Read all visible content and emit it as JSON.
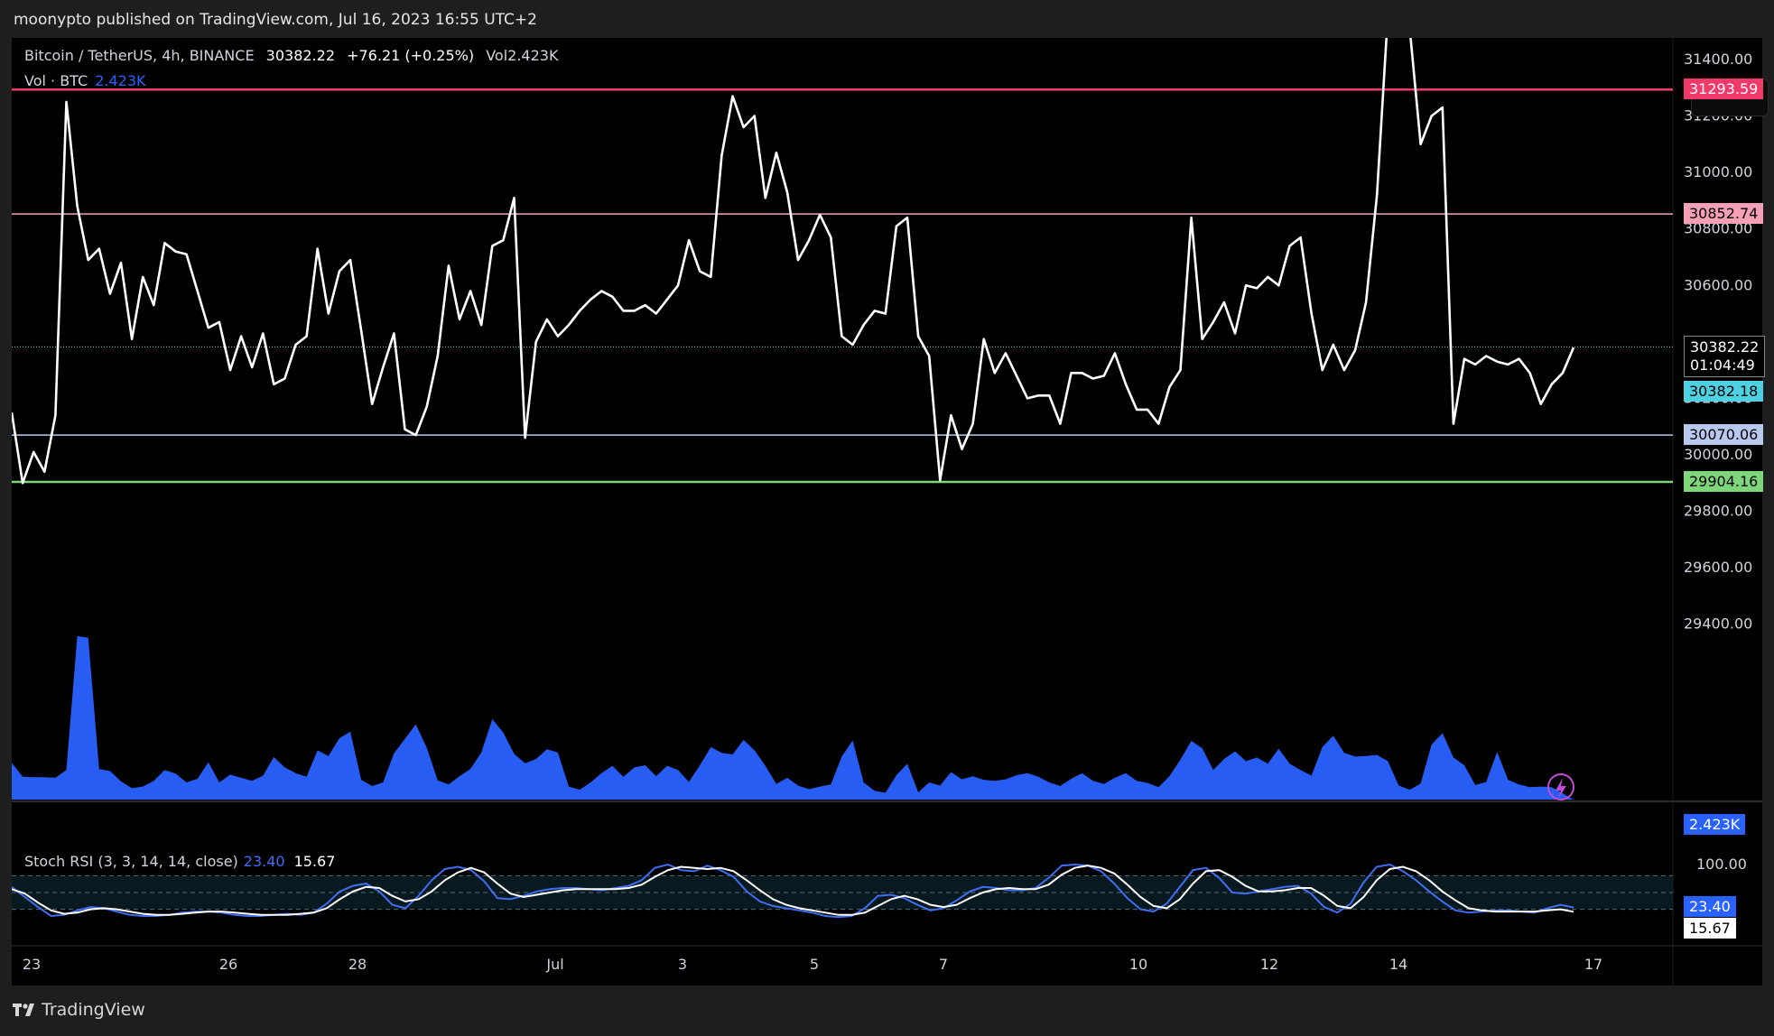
{
  "header": {
    "publisher_line": "moonypto published on TradingView.com, Jul 16, 2023 16:55 UTC+2"
  },
  "legend": {
    "symbol": "Bitcoin / TetherUS, 4h, BINANCE",
    "price": "30382.22",
    "change": "+76.21 (+0.25%)",
    "volume": "Vol2.423K",
    "vol_label": "Vol · BTC",
    "vol_value": "2.423K"
  },
  "rsi_legend": {
    "label": "Stoch RSI (3, 3, 14, 14, close)",
    "k": "23.40",
    "d": "15.67"
  },
  "footer": {
    "brand": "TradingView"
  },
  "colors": {
    "line": "#ffffff",
    "volume": "#2962ff",
    "level_red": "#f23a6a",
    "level_pink": "#f5a0b5",
    "level_green": "#7ed67a",
    "level_blue": "#b8c8ee",
    "current": "#7fd7e6"
  },
  "chart_data": [
    {
      "type": "line",
      "title": "Bitcoin / TetherUS, 4h, BINANCE",
      "x_ticks": [
        "23",
        "26",
        "28",
        "Jul",
        "3",
        "5",
        "7",
        "10",
        "12",
        "14",
        "17"
      ],
      "y_ticks": [
        "31400.00",
        "31200.00",
        "31000.00",
        "30800.00",
        "30600.00",
        "30200.00",
        "30000.00",
        "29800.00",
        "29600.00",
        "29400.00"
      ],
      "ylim": [
        29264,
        31503
      ],
      "horizontal_levels": [
        {
          "value": 31293.59,
          "label": "31293.59",
          "color": "#f23a6a"
        },
        {
          "value": 30852.74,
          "label": "30852.74",
          "color": "#f5a0b5"
        },
        {
          "value": 30070.06,
          "label": "30070.06",
          "color": "#b8c8ee"
        },
        {
          "value": 29904.16,
          "label": "29904.16",
          "color": "#7ed67a"
        }
      ],
      "current_price": {
        "value": 30382.22,
        "label": "30382.22",
        "countdown": "01:04:49",
        "bid_label": "30382.18"
      },
      "values": [
        30150,
        29900,
        30010,
        29940,
        30140,
        31250,
        30880,
        30690,
        30730,
        30570,
        30680,
        30410,
        30630,
        30530,
        30750,
        30720,
        30710,
        30580,
        30450,
        30470,
        30300,
        30420,
        30310,
        30430,
        30250,
        30270,
        30390,
        30420,
        30730,
        30500,
        30650,
        30690,
        30440,
        30180,
        30310,
        30430,
        30090,
        30070,
        30170,
        30350,
        30670,
        30480,
        30580,
        30460,
        30740,
        30760,
        30910,
        30060,
        30400,
        30480,
        30420,
        30460,
        30510,
        30550,
        30580,
        30560,
        30510,
        30510,
        30530,
        30500,
        30550,
        30600,
        30760,
        30650,
        30630,
        31060,
        31270,
        31160,
        31200,
        30910,
        31070,
        30930,
        30690,
        30760,
        30850,
        30770,
        30420,
        30390,
        30460,
        30510,
        30500,
        30810,
        30840,
        30420,
        30350,
        29910,
        30140,
        30020,
        30110,
        30410,
        30290,
        30360,
        30280,
        30200,
        30210,
        30210,
        30110,
        30290,
        30290,
        30270,
        30280,
        30360,
        30250,
        30160,
        30160,
        30110,
        30240,
        30300,
        30840,
        30410,
        30470,
        30540,
        30430,
        30600,
        30590,
        30630,
        30600,
        30740,
        30770,
        30500,
        30300,
        30390,
        30300,
        30370,
        30540,
        30920,
        31560,
        31510,
        31510,
        31100,
        31200,
        31230,
        30110,
        30340,
        30320,
        30350,
        30330,
        30320,
        30340,
        30290,
        30180,
        30250,
        30290,
        30380
      ],
      "volume": {
        "label": "Vol · BTC",
        "last": "2.423K",
        "values": [
          7.1,
          4.4,
          4.3,
          4.3,
          4.2,
          5.7,
          31.5,
          31.2,
          5.9,
          5.5,
          3.5,
          2.2,
          2.5,
          3.6,
          5.7,
          5.0,
          3.3,
          4.0,
          7.2,
          3.3,
          4.8,
          4.2,
          3.6,
          4.6,
          8.2,
          6.2,
          5.1,
          4.4,
          9.5,
          8.4,
          11.8,
          13.1,
          3.8,
          2.6,
          3.3,
          8.9,
          11.7,
          14.5,
          10.0,
          3.7,
          2.9,
          4.5,
          5.9,
          9.1,
          15.5,
          12.9,
          8.8,
          7.0,
          7.8,
          9.7,
          9.1,
          2.5,
          1.9,
          3.3,
          5.1,
          6.5,
          4.4,
          6.2,
          6.6,
          4.5,
          6.5,
          5.7,
          3.4,
          6.6,
          10.1,
          9.0,
          8.7,
          11.5,
          9.5,
          6.5,
          3.0,
          4.2,
          2.7,
          2.0,
          2.5,
          2.9,
          8.3,
          11.4,
          3.3,
          1.7,
          1.3,
          4.7,
          6.9,
          1.4,
          3.3,
          2.7,
          5.3,
          3.9,
          4.5,
          3.8,
          3.6,
          3.9,
          4.7,
          5.1,
          4.4,
          3.3,
          2.6,
          4.0,
          5.1,
          3.6,
          3.0,
          4.2,
          5.1,
          3.6,
          3.2,
          2.4,
          4.5,
          7.7,
          11.3,
          9.9,
          5.7,
          7.8,
          9.3,
          7.4,
          8.1,
          6.9,
          9.8,
          6.9,
          5.7,
          4.6,
          10.1,
          12.3,
          9.0,
          8.3,
          8.4,
          8.6,
          7.4,
          2.7,
          1.9,
          3.1,
          10.6,
          12.8,
          8.1,
          6.6,
          2.8,
          3.4,
          9.2,
          3.8,
          2.9,
          2.4,
          2.5,
          2.4
        ],
        "ylim": [
          0,
          40
        ]
      }
    },
    {
      "type": "line",
      "title": "Stoch RSI (3, 3, 14, 14, close)",
      "y_ticks": [
        "100.00"
      ],
      "series": [
        {
          "name": "K",
          "color": "#3f6ef5",
          "last": "23.40",
          "values": [
            60,
            42,
            24,
            8,
            10,
            18,
            24,
            22,
            16,
            10,
            8,
            8,
            10,
            14,
            16,
            16,
            14,
            10,
            8,
            8,
            10,
            12,
            10,
            14,
            30,
            52,
            62,
            66,
            52,
            28,
            22,
            44,
            72,
            92,
            96,
            90,
            70,
            40,
            38,
            44,
            52,
            56,
            58,
            58,
            56,
            54,
            58,
            62,
            72,
            94,
            100,
            90,
            88,
            98,
            90,
            78,
            52,
            34,
            26,
            22,
            18,
            14,
            8,
            6,
            8,
            22,
            44,
            46,
            40,
            28,
            18,
            22,
            36,
            52,
            60,
            58,
            54,
            54,
            58,
            76,
            98,
            100,
            98,
            88,
            66,
            40,
            20,
            16,
            30,
            60,
            90,
            94,
            76,
            50,
            48,
            52,
            56,
            60,
            62,
            48,
            24,
            14,
            30,
            68,
            96,
            100,
            88,
            72,
            52,
            34,
            18,
            14,
            16,
            18,
            18,
            16,
            14,
            22,
            28,
            23.4
          ]
        },
        {
          "name": "D",
          "color": "#ffffff",
          "last": "15.67",
          "values": [
            56,
            48,
            32,
            18,
            12,
            14,
            20,
            22,
            20,
            16,
            12,
            10,
            10,
            12,
            14,
            16,
            16,
            14,
            12,
            10,
            10,
            10,
            12,
            14,
            22,
            38,
            52,
            60,
            58,
            44,
            34,
            38,
            52,
            72,
            86,
            94,
            86,
            66,
            48,
            42,
            46,
            50,
            54,
            56,
            56,
            56,
            56,
            58,
            64,
            78,
            90,
            96,
            94,
            92,
            94,
            88,
            72,
            54,
            38,
            28,
            22,
            18,
            14,
            10,
            10,
            14,
            26,
            38,
            44,
            38,
            28,
            24,
            28,
            40,
            50,
            56,
            58,
            56,
            56,
            64,
            82,
            94,
            98,
            94,
            84,
            64,
            42,
            26,
            22,
            38,
            66,
            88,
            90,
            78,
            62,
            52,
            52,
            54,
            58,
            58,
            44,
            26,
            22,
            42,
            72,
            92,
            96,
            88,
            72,
            52,
            36,
            22,
            18,
            16,
            16,
            16,
            16,
            18,
            20,
            15.67
          ]
        }
      ],
      "ylim": [
        0,
        100
      ]
    }
  ],
  "price_tags": {
    "volume_tag": "2.423K",
    "k_tag": "23.40",
    "d_tag": "15.67"
  }
}
